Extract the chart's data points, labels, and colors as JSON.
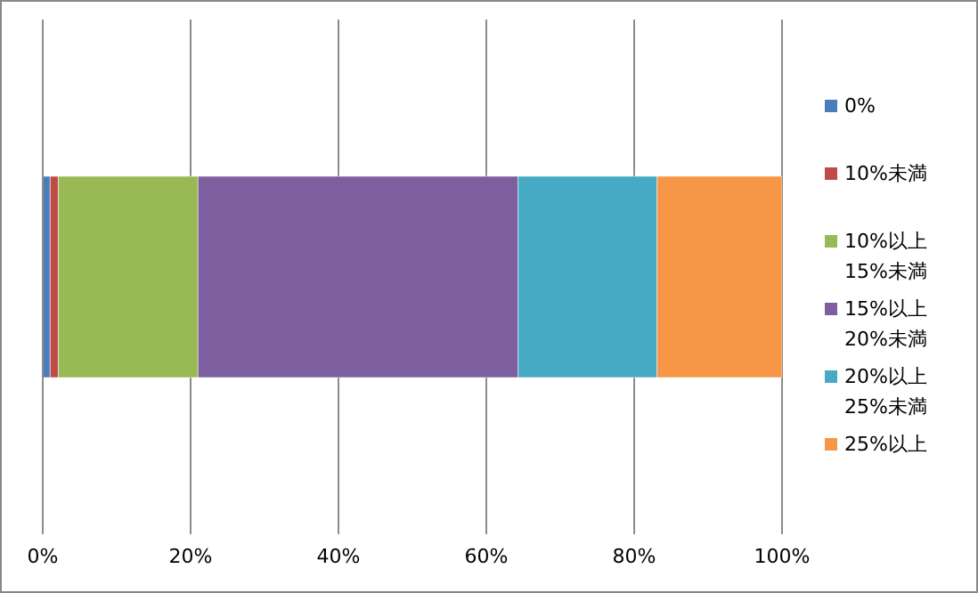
{
  "chart_data": {
    "type": "bar",
    "orientation": "horizontal",
    "stacked": true,
    "categories": [
      null
    ],
    "series": [
      {
        "name": "0%",
        "color": "#4a7ebb",
        "values": [
          1.0
        ]
      },
      {
        "name": "10%未満",
        "color": "#be4b48",
        "values": [
          1.1
        ]
      },
      {
        "name": "10%以上\n15%未満",
        "color": "#98b954",
        "values": [
          18.9
        ]
      },
      {
        "name": "15%以上\n20%未満",
        "color": "#7d5fa0",
        "values": [
          43.3
        ]
      },
      {
        "name": "20%以上\n25%未満",
        "color": "#46aac5",
        "values": [
          18.8
        ]
      },
      {
        "name": "25%以上",
        "color": "#f79646",
        "values": [
          16.9
        ]
      }
    ],
    "xlim": [
      0,
      100
    ],
    "xticks": [
      {
        "value": 0,
        "label": "0%"
      },
      {
        "value": 20,
        "label": "20%"
      },
      {
        "value": 40,
        "label": "40%"
      },
      {
        "value": 60,
        "label": "60%"
      },
      {
        "value": 80,
        "label": "80%"
      },
      {
        "value": 100,
        "label": "100%"
      }
    ],
    "grid": "x",
    "legend": "right",
    "tick_labels": "x"
  }
}
